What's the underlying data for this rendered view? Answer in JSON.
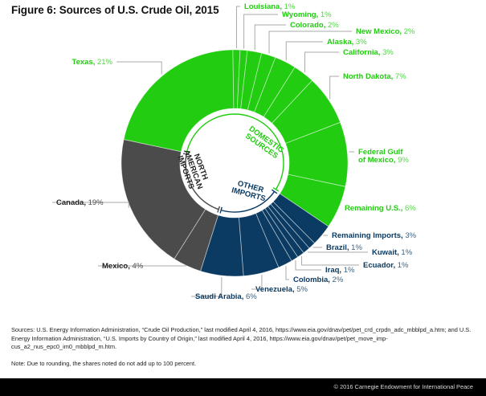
{
  "chart_data": {
    "type": "pie",
    "subtype": "donut",
    "title": "Figure 6: Sources of U.S. Crude Oil, 2015",
    "unit": "%",
    "groups": [
      {
        "name": "DOMESTIC SOURCES",
        "label_lines": [
          "DOMESTIC",
          "SOURCES"
        ],
        "color": "#22cc11",
        "text_color": "#22cc11"
      },
      {
        "name": "OTHER IMPORTS",
        "label_lines": [
          "OTHER",
          "IMPORTS"
        ],
        "color": "#0b3a62",
        "text_color": "#0b3a62"
      },
      {
        "name": "NORTH AMERICAN IMPORTS",
        "label_lines": [
          "NORTH",
          "AMERICAN",
          "IMPORTS"
        ],
        "color": "#4b4b4b",
        "text_color": "#222222"
      }
    ],
    "slices": [
      {
        "name": "Texas",
        "value": 21,
        "group": 0,
        "label": "Texas, 21%"
      },
      {
        "name": "Louisiana",
        "value": 1,
        "group": 0,
        "label": "Louisiana, 1%"
      },
      {
        "name": "Wyoming",
        "value": 1,
        "group": 0,
        "label": "Wyoming, 1%"
      },
      {
        "name": "Colorado",
        "value": 2,
        "group": 0,
        "label": "Colorado, 2%"
      },
      {
        "name": "New Mexico",
        "value": 2,
        "group": 0,
        "label": "New Mexico, 2%"
      },
      {
        "name": "Alaska",
        "value": 3,
        "group": 0,
        "label": "Alaska, 3%"
      },
      {
        "name": "California",
        "value": 3,
        "group": 0,
        "label": "California, 3%"
      },
      {
        "name": "North Dakota",
        "value": 7,
        "group": 0,
        "label": "North Dakota, 7%"
      },
      {
        "name": "Federal Gulf of Mexico",
        "value": 9,
        "group": 0,
        "label": "Federal Gulf|of Mexico, 9%"
      },
      {
        "name": "Remaining U.S.",
        "value": 6,
        "group": 0,
        "label": "Remaining U.S., 6%"
      },
      {
        "name": "Remaining Imports",
        "value": 3,
        "group": 1,
        "label": "Remaining Imports, 3%"
      },
      {
        "name": "Brazil",
        "value": 1,
        "group": 1,
        "label": "Brazil, 1%"
      },
      {
        "name": "Kuwait",
        "value": 1,
        "group": 1,
        "label": "Kuwait, 1%"
      },
      {
        "name": "Ecuador",
        "value": 1,
        "group": 1,
        "label": "Ecuador, 1%"
      },
      {
        "name": "Iraq",
        "value": 1,
        "group": 1,
        "label": "Iraq, 1%"
      },
      {
        "name": "Colombia",
        "value": 2,
        "group": 1,
        "label": "Colombia, 2%"
      },
      {
        "name": "Venezuela",
        "value": 5,
        "group": 1,
        "label": "Venezuela, 5%"
      },
      {
        "name": "Saudi Arabia",
        "value": 6,
        "group": 1,
        "label": "Saudi Arabia, 6%"
      },
      {
        "name": "Mexico",
        "value": 4,
        "group": 2,
        "label": "Mexico, 4%"
      },
      {
        "name": "Canada",
        "value": 19,
        "group": 2,
        "label": "Canada, 19%"
      }
    ],
    "legend": "none",
    "grid": false
  },
  "sources": "Sources: U.S. Energy Information Administration, “Crude Oil Production,” last modified April 4, 2016, https://www.eia.gov/dnav/pet/pet_crd_crpdn_adc_mbblpd_a.htm; and U.S. Energy Information Administration, “U.S. Imports by Country of Origin,” last modified April 4, 2016, https://www.eia.gov/dnav/pet/pet_move_imp-cus_a2_nus_epc0_im0_mbblpd_m.htm.",
  "note": "Note: Due to rounding, the shares noted do not add up to 100 percent.",
  "footer": {
    "copyright": "© 2016 Carnegie Endowment for International Peace"
  }
}
